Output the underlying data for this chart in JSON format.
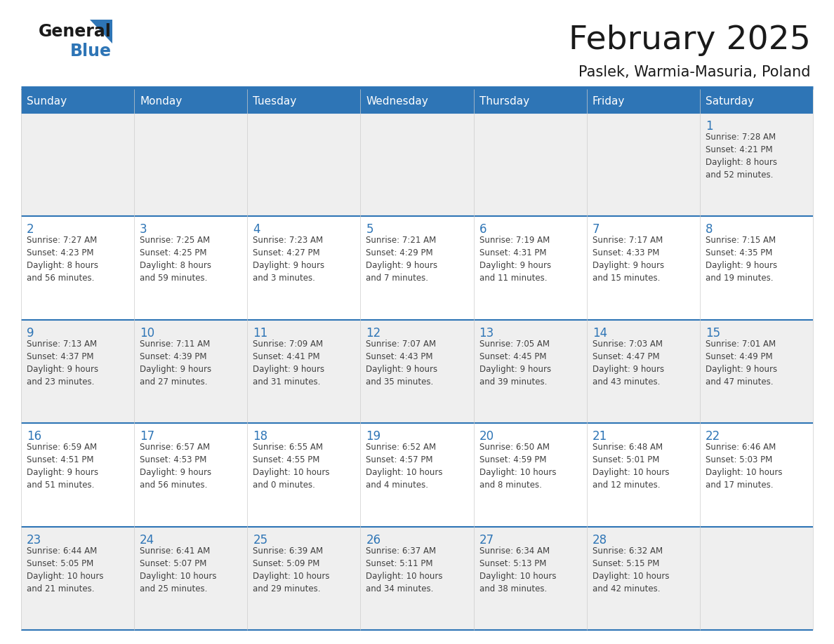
{
  "title": "February 2025",
  "subtitle": "Paslek, Warmia-Masuria, Poland",
  "days_of_week": [
    "Sunday",
    "Monday",
    "Tuesday",
    "Wednesday",
    "Thursday",
    "Friday",
    "Saturday"
  ],
  "header_bg": "#2E75B6",
  "header_text_color": "#FFFFFF",
  "row_bg_gray": "#EFEFEF",
  "row_bg_white": "#FFFFFF",
  "day_number_color": "#2E75B6",
  "text_color": "#404040",
  "line_color": "#2E75B6",
  "logo_general_color": "#1a1a1a",
  "logo_blue_color": "#2E75B6",
  "calendar_data": [
    [
      null,
      null,
      null,
      null,
      null,
      null,
      {
        "day": 1,
        "sunrise": "7:28 AM",
        "sunset": "4:21 PM",
        "daylight": "8 hours and 52 minutes."
      }
    ],
    [
      {
        "day": 2,
        "sunrise": "7:27 AM",
        "sunset": "4:23 PM",
        "daylight": "8 hours and 56 minutes."
      },
      {
        "day": 3,
        "sunrise": "7:25 AM",
        "sunset": "4:25 PM",
        "daylight": "8 hours and 59 minutes."
      },
      {
        "day": 4,
        "sunrise": "7:23 AM",
        "sunset": "4:27 PM",
        "daylight": "9 hours and 3 minutes."
      },
      {
        "day": 5,
        "sunrise": "7:21 AM",
        "sunset": "4:29 PM",
        "daylight": "9 hours and 7 minutes."
      },
      {
        "day": 6,
        "sunrise": "7:19 AM",
        "sunset": "4:31 PM",
        "daylight": "9 hours and 11 minutes."
      },
      {
        "day": 7,
        "sunrise": "7:17 AM",
        "sunset": "4:33 PM",
        "daylight": "9 hours and 15 minutes."
      },
      {
        "day": 8,
        "sunrise": "7:15 AM",
        "sunset": "4:35 PM",
        "daylight": "9 hours and 19 minutes."
      }
    ],
    [
      {
        "day": 9,
        "sunrise": "7:13 AM",
        "sunset": "4:37 PM",
        "daylight": "9 hours and 23 minutes."
      },
      {
        "day": 10,
        "sunrise": "7:11 AM",
        "sunset": "4:39 PM",
        "daylight": "9 hours and 27 minutes."
      },
      {
        "day": 11,
        "sunrise": "7:09 AM",
        "sunset": "4:41 PM",
        "daylight": "9 hours and 31 minutes."
      },
      {
        "day": 12,
        "sunrise": "7:07 AM",
        "sunset": "4:43 PM",
        "daylight": "9 hours and 35 minutes."
      },
      {
        "day": 13,
        "sunrise": "7:05 AM",
        "sunset": "4:45 PM",
        "daylight": "9 hours and 39 minutes."
      },
      {
        "day": 14,
        "sunrise": "7:03 AM",
        "sunset": "4:47 PM",
        "daylight": "9 hours and 43 minutes."
      },
      {
        "day": 15,
        "sunrise": "7:01 AM",
        "sunset": "4:49 PM",
        "daylight": "9 hours and 47 minutes."
      }
    ],
    [
      {
        "day": 16,
        "sunrise": "6:59 AM",
        "sunset": "4:51 PM",
        "daylight": "9 hours and 51 minutes."
      },
      {
        "day": 17,
        "sunrise": "6:57 AM",
        "sunset": "4:53 PM",
        "daylight": "9 hours and 56 minutes."
      },
      {
        "day": 18,
        "sunrise": "6:55 AM",
        "sunset": "4:55 PM",
        "daylight": "10 hours and 0 minutes."
      },
      {
        "day": 19,
        "sunrise": "6:52 AM",
        "sunset": "4:57 PM",
        "daylight": "10 hours and 4 minutes."
      },
      {
        "day": 20,
        "sunrise": "6:50 AM",
        "sunset": "4:59 PM",
        "daylight": "10 hours and 8 minutes."
      },
      {
        "day": 21,
        "sunrise": "6:48 AM",
        "sunset": "5:01 PM",
        "daylight": "10 hours and 12 minutes."
      },
      {
        "day": 22,
        "sunrise": "6:46 AM",
        "sunset": "5:03 PM",
        "daylight": "10 hours and 17 minutes."
      }
    ],
    [
      {
        "day": 23,
        "sunrise": "6:44 AM",
        "sunset": "5:05 PM",
        "daylight": "10 hours and 21 minutes."
      },
      {
        "day": 24,
        "sunrise": "6:41 AM",
        "sunset": "5:07 PM",
        "daylight": "10 hours and 25 minutes."
      },
      {
        "day": 25,
        "sunrise": "6:39 AM",
        "sunset": "5:09 PM",
        "daylight": "10 hours and 29 minutes."
      },
      {
        "day": 26,
        "sunrise": "6:37 AM",
        "sunset": "5:11 PM",
        "daylight": "10 hours and 34 minutes."
      },
      {
        "day": 27,
        "sunrise": "6:34 AM",
        "sunset": "5:13 PM",
        "daylight": "10 hours and 38 minutes."
      },
      {
        "day": 28,
        "sunrise": "6:32 AM",
        "sunset": "5:15 PM",
        "daylight": "10 hours and 42 minutes."
      },
      null
    ]
  ]
}
